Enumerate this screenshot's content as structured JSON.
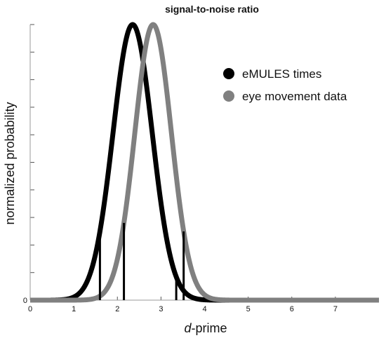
{
  "chart_data": {
    "type": "line",
    "title": "signal-to-noise ratio",
    "xlabel_italic": "d",
    "xlabel_rest": "-prime",
    "ylabel": "normalized probability",
    "xlim": [
      0,
      8
    ],
    "ylim": [
      0,
      1
    ],
    "x_ticks": [
      0,
      1,
      2,
      3,
      4,
      5,
      6,
      7
    ],
    "y_ticks": [
      0,
      0.1,
      0.2,
      0.3,
      0.4,
      0.5,
      0.6,
      0.7,
      0.8,
      0.9,
      1.0
    ],
    "y_tick_labels": [
      "0"
    ],
    "legend_position": "top-right",
    "series": [
      {
        "name": "eMULES times",
        "color": "#000000",
        "mean": 2.35,
        "sd": 0.45,
        "interval_lines": [
          1.6,
          3.35
        ]
      },
      {
        "name": "eye movement data",
        "color": "#808080",
        "mean": 2.82,
        "sd": 0.42,
        "interval_lines": [
          2.15,
          3.52
        ]
      }
    ]
  }
}
